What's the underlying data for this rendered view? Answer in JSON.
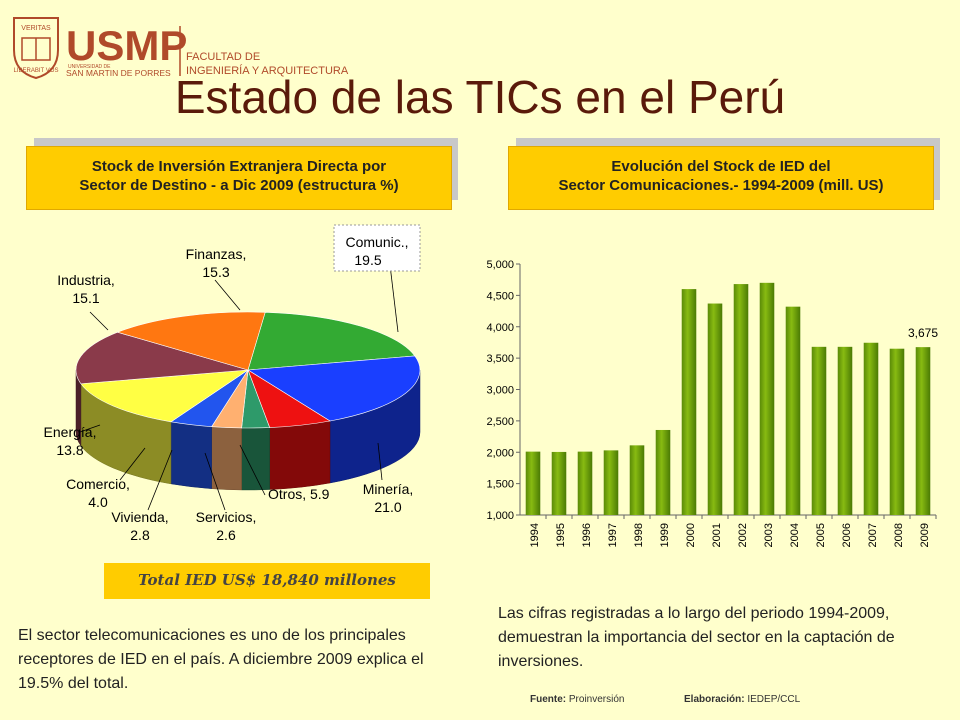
{
  "header": {
    "logo_text": "USMP",
    "seal_top": "VERITAS",
    "seal_bottom": "LIBERABIT VOS",
    "univ_small": "UNIVERSIDAD DE",
    "univ_name": "SAN MARTIN DE PORRES",
    "faculty_line1": "FACULTAD DE",
    "faculty_line2": "INGENIERÍA Y ARQUITECTURA",
    "brand_color": "#b04a2a"
  },
  "title": "Estado de las TICs en el Perú",
  "left_box": {
    "line1": "Stock de Inversión Extranjera Directa por",
    "line2": "Sector de Destino - a Dic 2009 (estructura %)"
  },
  "right_box": {
    "line1": "Evolución del Stock de IED del",
    "line2": "Sector Comunicaciones.- 1994-2009 (mill. US)"
  },
  "total": "Total IED US$ 18,840 millones",
  "left_text": "El sector telecomunicaciones es uno de los principales receptores de IED en el país. A diciembre 2009 explica el  19.5% del total.",
  "right_text": "Las cifras registradas a lo largo del periodo 1994-2009, demuestran la importancia del sector en la captación de inversiones.",
  "source": {
    "fuente_label": "Fuente:",
    "fuente_value": "Proinversión",
    "elab_label": "Elaboración:",
    "elab_value": "IEDEP/CCL"
  },
  "chart_data": [
    {
      "type": "pie",
      "slices": [
        {
          "label": "Comunic.,",
          "value": 19.5,
          "color": "#33aa33"
        },
        {
          "label": "Minería,",
          "value": 21.0,
          "color": "#1a3fff"
        },
        {
          "label": "Otros,",
          "value": 5.9,
          "color": "#ee1111"
        },
        {
          "label": "Servicios,",
          "value": 2.6,
          "color": "#2e9a6a"
        },
        {
          "label": "Vivienda,",
          "value": 2.8,
          "color": "#ffb070"
        },
        {
          "label": "Comercio,",
          "value": 4.0,
          "color": "#2255ee"
        },
        {
          "label": "Energía,",
          "value": 13.8,
          "color": "#ffff44"
        },
        {
          "label": "Industria,",
          "value": 15.1,
          "color": "#8a3a4a"
        },
        {
          "label": "Finanzas,",
          "value": 15.3,
          "color": "#ff7711"
        }
      ]
    },
    {
      "type": "bar",
      "categories": [
        "1994",
        "1995",
        "1996",
        "1997",
        "1998",
        "1999",
        "2000",
        "2001",
        "2002",
        "2003",
        "2004",
        "2005",
        "2006",
        "2007",
        "2008",
        "2009"
      ],
      "values": [
        2010,
        2005,
        2010,
        2030,
        2110,
        2355,
        4600,
        4370,
        4680,
        4700,
        4320,
        3680,
        3680,
        3745,
        3650,
        3675
      ],
      "yticks": [
        "1,000",
        "1,500",
        "2,000",
        "2,500",
        "3,000",
        "3,500",
        "4,000",
        "4,500",
        "5,000"
      ],
      "ylim": [
        1000,
        5000
      ],
      "data_label": "3,675",
      "color": "#88bb11"
    }
  ]
}
